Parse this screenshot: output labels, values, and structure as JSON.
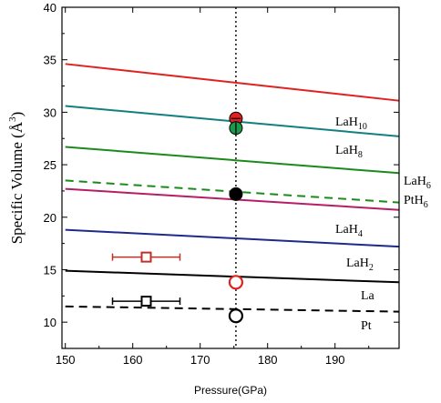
{
  "chart_data": {
    "type": "line",
    "title": "",
    "xlabel": "Pressure(GPa)",
    "ylabel": "Specific Volume (Å³)",
    "ylabel_parts": {
      "text": "Specific Volume (Å",
      "sup": "3",
      "close": ")"
    },
    "xlim": [
      149.5,
      199.5
    ],
    "ylim": [
      7.5,
      40
    ],
    "xticks": [
      150,
      160,
      170,
      180,
      190
    ],
    "yticks": [
      10,
      15,
      20,
      25,
      30,
      35,
      40
    ],
    "grid": false,
    "reference_line": {
      "x": 175.3,
      "style": "dotted",
      "color": "#000000"
    },
    "series": [
      {
        "id": "LaH10",
        "label": {
          "base": "LaH",
          "sub": "10"
        },
        "color": "#e0211f",
        "dash": "solid",
        "x": [
          150,
          199.5
        ],
        "y": [
          34.6,
          31.1
        ]
      },
      {
        "id": "LaH8",
        "label": {
          "base": "LaH",
          "sub": "8"
        },
        "color": "#137f80",
        "dash": "solid",
        "x": [
          150,
          199.5
        ],
        "y": [
          30.6,
          27.7
        ]
      },
      {
        "id": "LaH6",
        "label": {
          "base": "LaH",
          "sub": "6"
        },
        "color": "#1a8a1a",
        "dash": "solid",
        "x": [
          150,
          199.5
        ],
        "y": [
          26.7,
          24.2
        ]
      },
      {
        "id": "PtH6",
        "label": {
          "base": "PtH",
          "sub": "6"
        },
        "color": "#1a8a1a",
        "dash": "dashed",
        "x": [
          150,
          199.5
        ],
        "y": [
          23.5,
          21.4
        ]
      },
      {
        "id": "LaH4",
        "label": {
          "base": "LaH",
          "sub": "4"
        },
        "color": "#b51e64",
        "dash": "solid",
        "x": [
          150,
          199.5
        ],
        "y": [
          22.7,
          20.7
        ]
      },
      {
        "id": "LaH2",
        "label": {
          "base": "LaH",
          "sub": "2"
        },
        "color": "#1c2a8c",
        "dash": "solid",
        "x": [
          150,
          199.5
        ],
        "y": [
          18.8,
          17.2
        ]
      },
      {
        "id": "La",
        "label": {
          "base": "La",
          "sub": ""
        },
        "color": "#000000",
        "dash": "solid",
        "x": [
          150,
          199.5
        ],
        "y": [
          14.9,
          13.8
        ]
      },
      {
        "id": "Pt",
        "label": {
          "base": "Pt",
          "sub": ""
        },
        "color": "#000000",
        "dash": "dashed",
        "x": [
          150,
          199.5
        ],
        "y": [
          11.5,
          11.0
        ]
      }
    ],
    "points": [
      {
        "id": "red-filled",
        "x": 175.3,
        "y": 29.4,
        "marker": "circle",
        "filled": true,
        "fill": "#e0211f",
        "stroke": "#000000",
        "xerr": 0.7,
        "yerr": 0
      },
      {
        "id": "green-filled",
        "x": 175.3,
        "y": 28.5,
        "marker": "circle",
        "filled": true,
        "fill": "#1a9a4a",
        "stroke": "#000000",
        "xerr": 0,
        "yerr": 0.6
      },
      {
        "id": "black-filled",
        "x": 175.3,
        "y": 22.2,
        "marker": "circle",
        "filled": true,
        "fill": "#000000",
        "stroke": "#000000",
        "xerr": 0.6,
        "yerr": 0
      },
      {
        "id": "red-open",
        "x": 175.3,
        "y": 13.8,
        "marker": "circle",
        "filled": false,
        "fill": "none",
        "stroke": "#e0211f",
        "xerr": 0,
        "yerr": 0
      },
      {
        "id": "black-open",
        "x": 175.3,
        "y": 10.6,
        "marker": "circle",
        "filled": false,
        "fill": "none",
        "stroke": "#000000",
        "xerr": 0,
        "yerr": 0
      },
      {
        "id": "red-square",
        "x": 162,
        "y": 16.2,
        "marker": "square",
        "filled": false,
        "fill": "none",
        "stroke": "#c0302a",
        "xerr": 5,
        "yerr": 0
      },
      {
        "id": "black-square",
        "x": 162,
        "y": 12.0,
        "marker": "square",
        "filled": false,
        "fill": "none",
        "stroke": "#000000",
        "xerr": 5,
        "yerr": 0
      }
    ]
  }
}
